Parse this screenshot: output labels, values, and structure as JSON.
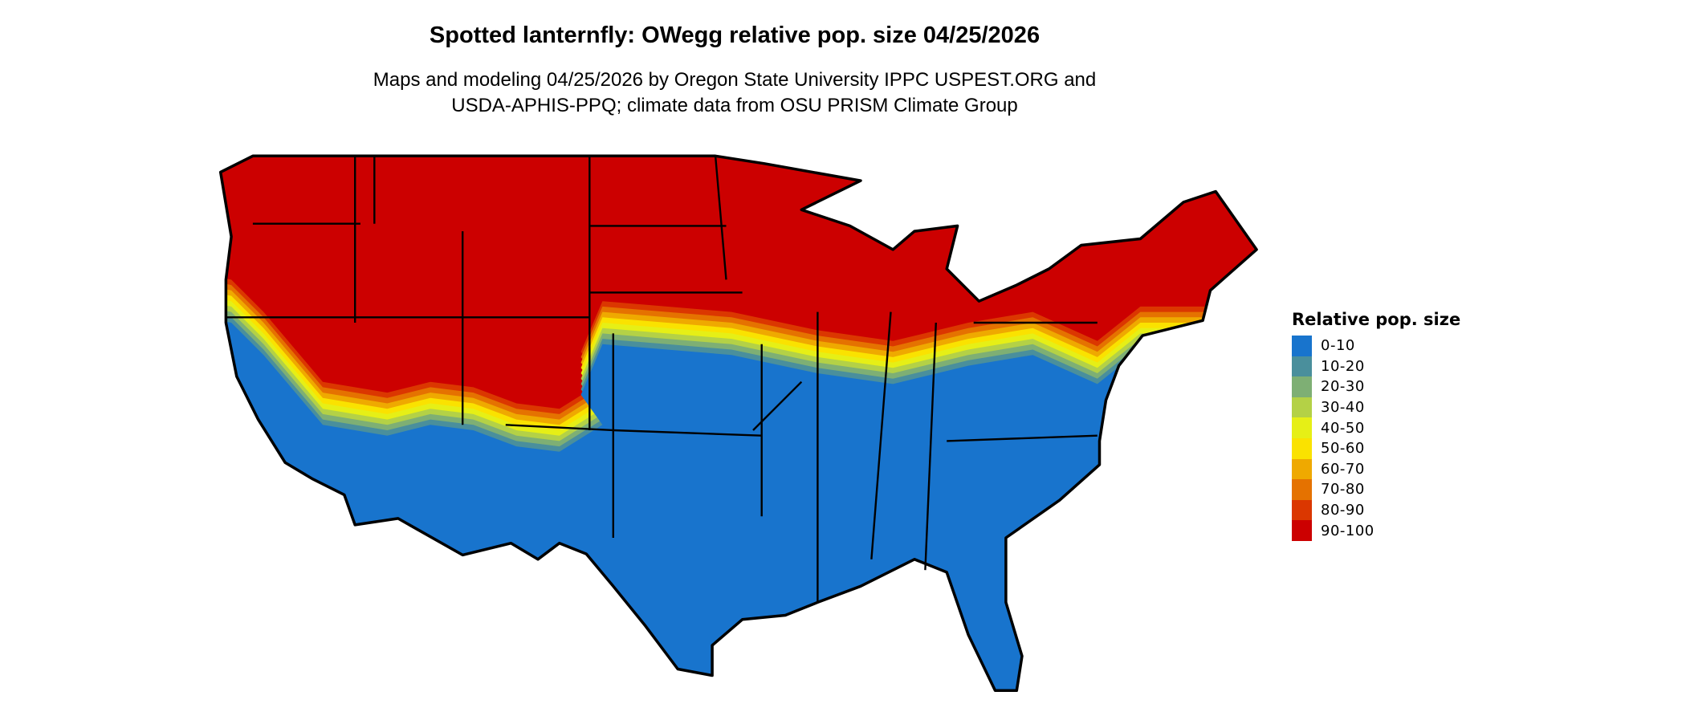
{
  "title": "Spotted lanternfly: OWegg relative pop. size 04/25/2026",
  "subtitle_lines": [
    "Maps and modeling 04/25/2026 by Oregon State University IPPC USPEST.ORG and",
    "USDA-APHIS-PPQ; climate data from OSU PRISM Climate Group"
  ],
  "legend": {
    "title": "Relative pop. size",
    "items": [
      {
        "label": "0-10",
        "color": "#1874CD"
      },
      {
        "label": "10-20",
        "color": "#4A8F9C"
      },
      {
        "label": "20-30",
        "color": "#7EAF74"
      },
      {
        "label": "30-40",
        "color": "#B4D146"
      },
      {
        "label": "40-50",
        "color": "#E6EF16"
      },
      {
        "label": "50-60",
        "color": "#FAE200"
      },
      {
        "label": "60-70",
        "color": "#EFA900"
      },
      {
        "label": "70-80",
        "color": "#E57200"
      },
      {
        "label": "80-90",
        "color": "#DB3700"
      },
      {
        "label": "90-100",
        "color": "#CC0000"
      }
    ]
  },
  "map": {
    "region": "Contiguous United States",
    "outline_color": "#000000"
  }
}
